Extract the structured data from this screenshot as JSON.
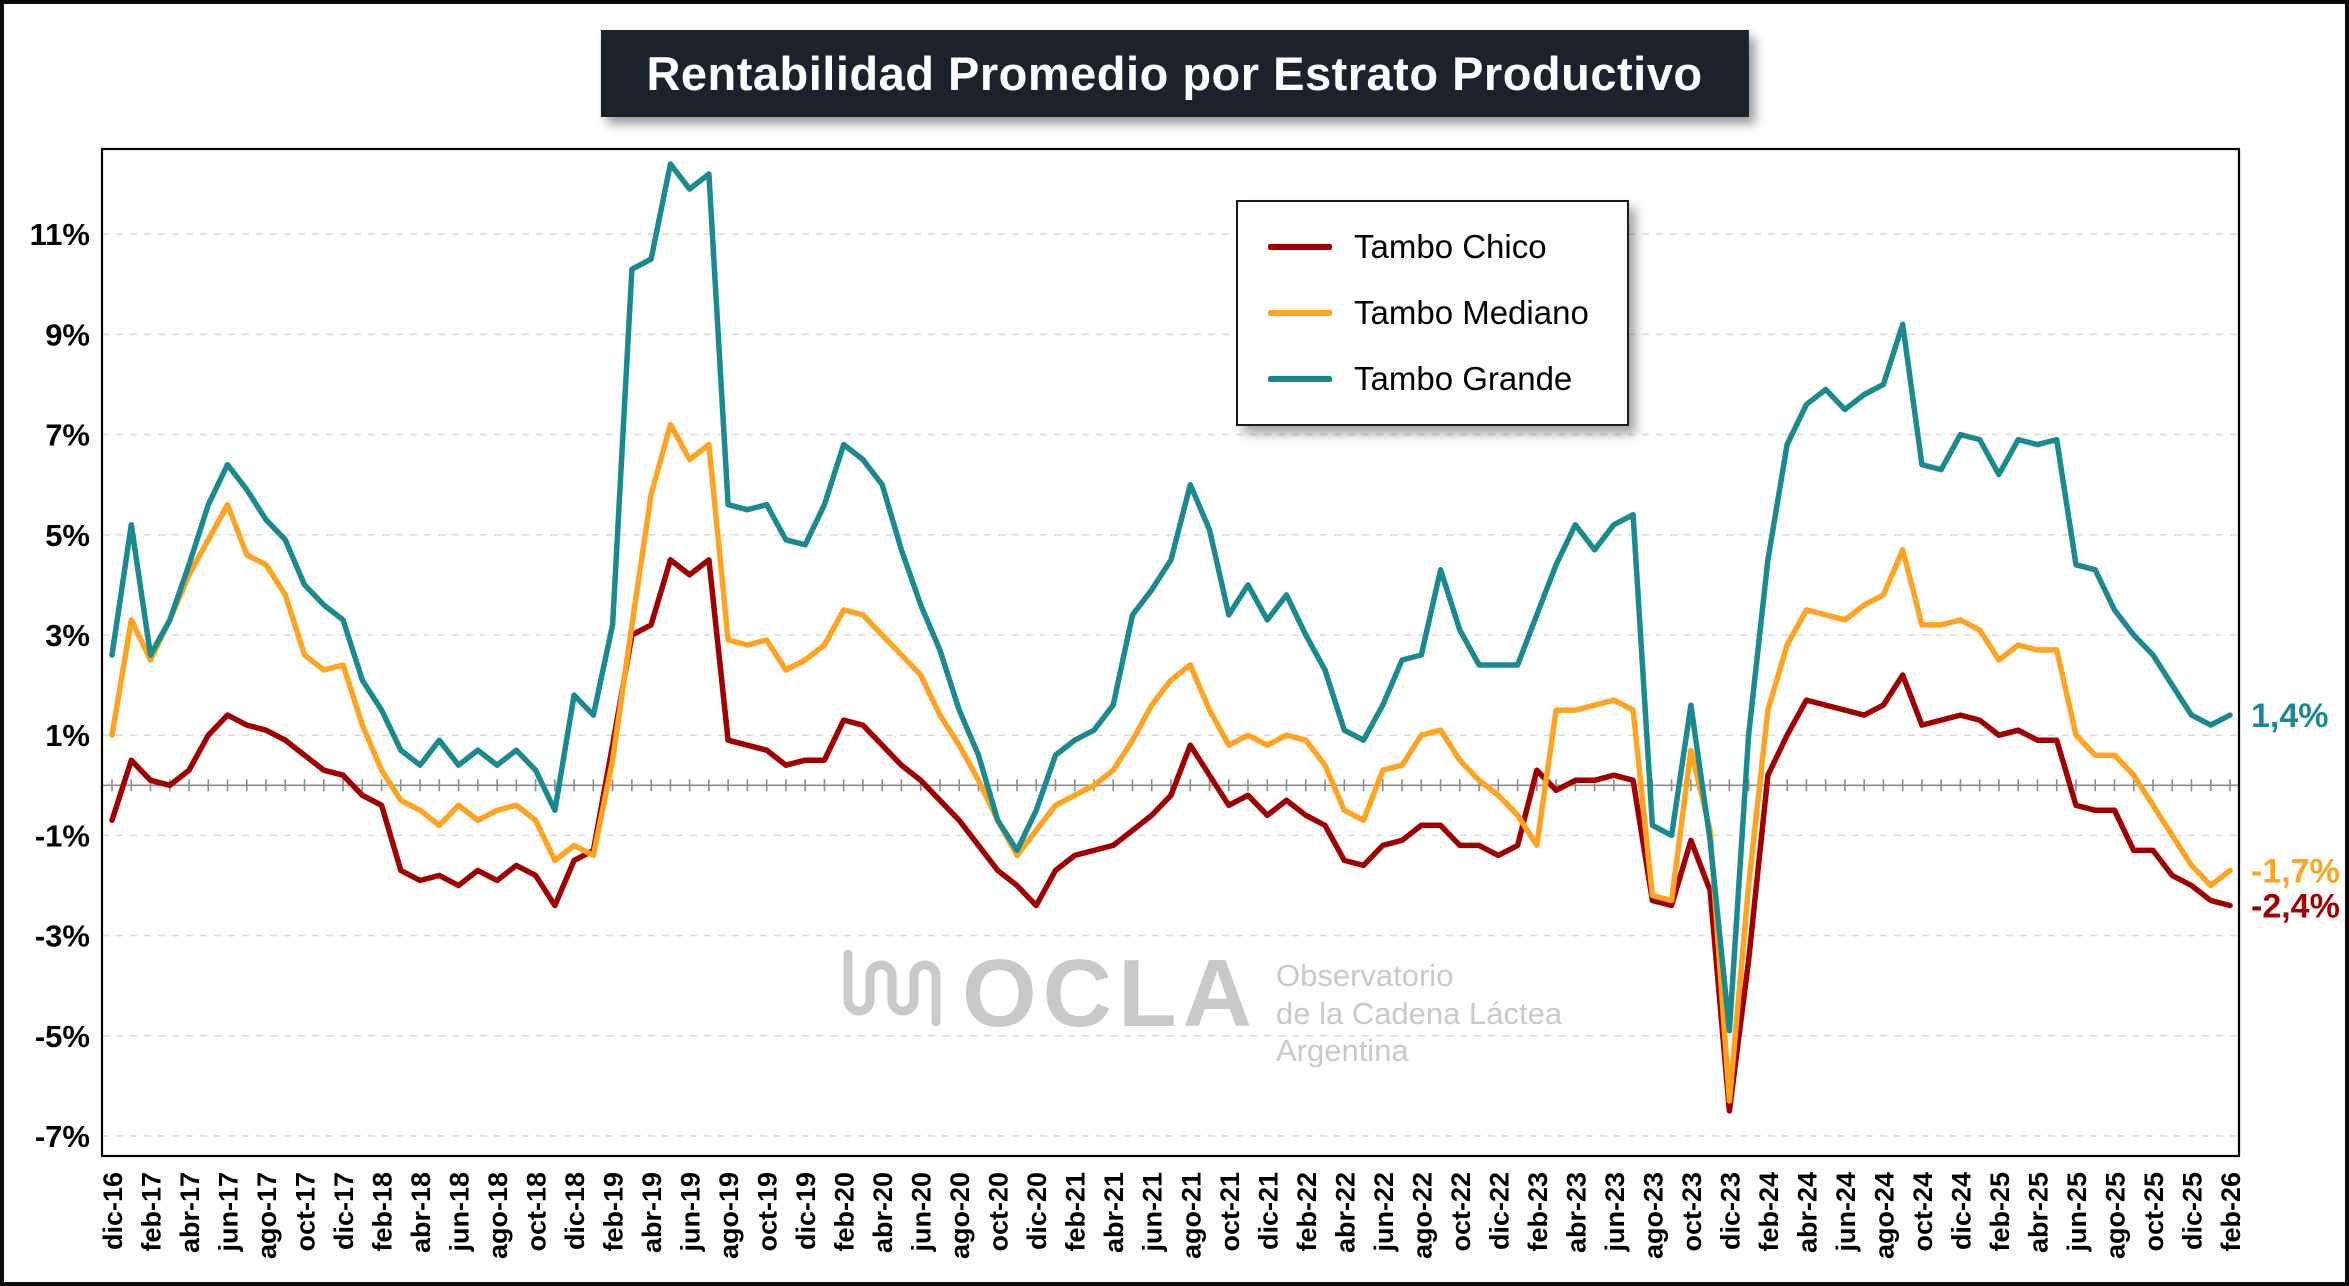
{
  "title": "Rentabilidad Promedio por Estrato Productivo",
  "colors": {
    "title_bg": "#1B222C",
    "grid": "#DCDCDC",
    "zero_axis": "#8C8C8C",
    "plot_border": "#000000",
    "watermark": "#C9C9C9"
  },
  "legend": {
    "items": [
      {
        "label": "Tambo Chico",
        "color": "#A00000"
      },
      {
        "label": "Tambo Mediano",
        "color": "#FFA320"
      },
      {
        "label": "Tambo Grande",
        "color": "#1B8A8F"
      }
    ]
  },
  "watermark": {
    "name": "OCLA",
    "lines": [
      "Observatorio",
      "de la Cadena Láctea",
      "Argentina"
    ]
  },
  "chart_data": {
    "type": "line",
    "title": "Rentabilidad Promedio por Estrato Productivo",
    "x_count": 111,
    "x_label_every": 2,
    "x_labels": [
      "dic-16",
      "feb-17",
      "abr-17",
      "jun-17",
      "ago-17",
      "oct-17",
      "dic-17",
      "feb-18",
      "abr-18",
      "jun-18",
      "ago-18",
      "oct-18",
      "dic-18",
      "feb-19",
      "abr-19",
      "jun-19",
      "ago-19",
      "oct-19",
      "dic-19",
      "feb-20",
      "abr-20",
      "jun-20",
      "ago-20",
      "oct-20",
      "dic-20",
      "feb-21",
      "abr-21",
      "jun-21",
      "ago-21",
      "oct-21",
      "dic-21",
      "feb-22",
      "abr-22",
      "jun-22",
      "ago-22",
      "oct-22",
      "dic-22",
      "feb-23",
      "abr-23",
      "jun-23",
      "ago-23",
      "oct-23",
      "dic-23",
      "feb-24",
      "abr-24",
      "jun-24",
      "ago-24",
      "oct-24",
      "dic-24",
      "feb-25",
      "abr-25",
      "jun-25",
      "ago-25",
      "oct-25",
      "dic-25",
      "feb-26"
    ],
    "y_ticks": [
      -7,
      -5,
      -3,
      -1,
      1,
      3,
      5,
      7,
      9,
      11
    ],
    "y_tick_labels": [
      "-7%",
      "-5%",
      "-3%",
      "-1%",
      "1%",
      "3%",
      "5%",
      "7%",
      "9%",
      "11%"
    ],
    "ylim": [
      -7.4,
      12.7
    ],
    "grid": true,
    "legend_position": "upper-center",
    "series": [
      {
        "name": "Tambo Chico",
        "color": "#A00000",
        "values": [
          -0.7,
          0.5,
          0.1,
          0.0,
          0.3,
          1.0,
          1.4,
          1.2,
          1.1,
          0.9,
          0.6,
          0.3,
          0.2,
          -0.2,
          -0.4,
          -1.7,
          -1.9,
          -1.8,
          -2.0,
          -1.7,
          -1.9,
          -1.6,
          -1.8,
          -2.4,
          -1.5,
          -1.3,
          0.8,
          3.0,
          3.2,
          4.5,
          4.2,
          4.5,
          0.9,
          0.8,
          0.7,
          0.4,
          0.5,
          0.5,
          1.3,
          1.2,
          0.8,
          0.4,
          0.1,
          -0.3,
          -0.7,
          -1.2,
          -1.7,
          -2.0,
          -2.4,
          -1.7,
          -1.4,
          -1.3,
          -1.2,
          -0.9,
          -0.6,
          -0.2,
          0.8,
          0.2,
          -0.4,
          -0.2,
          -0.6,
          -0.3,
          -0.6,
          -0.8,
          -1.5,
          -1.6,
          -1.2,
          -1.1,
          -0.8,
          -0.8,
          -1.2,
          -1.2,
          -1.4,
          -1.2,
          0.3,
          -0.1,
          0.1,
          0.1,
          0.2,
          0.1,
          -2.3,
          -2.4,
          -1.1,
          -2.1,
          -6.5,
          -3.5,
          0.2,
          1.0,
          1.7,
          1.6,
          1.5,
          1.4,
          1.6,
          2.2,
          1.2,
          1.3,
          1.4,
          1.3,
          1.0,
          1.1,
          0.9,
          0.9,
          -0.4,
          -0.5,
          -0.5,
          -1.3,
          -1.3,
          -1.8,
          -2.0,
          -2.3,
          -2.4
        ]
      },
      {
        "name": "Tambo Mediano",
        "color": "#FFA320",
        "values": [
          1.0,
          3.3,
          2.5,
          3.3,
          4.2,
          4.9,
          5.6,
          4.6,
          4.4,
          3.8,
          2.6,
          2.3,
          2.4,
          1.2,
          0.3,
          -0.3,
          -0.5,
          -0.8,
          -0.4,
          -0.7,
          -0.5,
          -0.4,
          -0.7,
          -1.5,
          -1.2,
          -1.4,
          0.5,
          3.2,
          5.8,
          7.2,
          6.5,
          6.8,
          2.9,
          2.8,
          2.9,
          2.3,
          2.5,
          2.8,
          3.5,
          3.4,
          3.0,
          2.6,
          2.2,
          1.4,
          0.8,
          0.1,
          -0.7,
          -1.4,
          -0.9,
          -0.4,
          -0.2,
          0.0,
          0.3,
          0.9,
          1.6,
          2.1,
          2.4,
          1.5,
          0.8,
          1.0,
          0.8,
          1.0,
          0.9,
          0.4,
          -0.5,
          -0.7,
          0.3,
          0.4,
          1.0,
          1.1,
          0.5,
          0.1,
          -0.2,
          -0.6,
          -1.2,
          1.5,
          1.5,
          1.6,
          1.7,
          1.5,
          -2.2,
          -2.3,
          0.7,
          -0.9,
          -6.3,
          -2.0,
          1.5,
          2.8,
          3.5,
          3.4,
          3.3,
          3.6,
          3.8,
          4.7,
          3.2,
          3.2,
          3.3,
          3.1,
          2.5,
          2.8,
          2.7,
          2.7,
          1.0,
          0.6,
          0.6,
          0.2,
          -0.4,
          -1.0,
          -1.6,
          -2.0,
          -1.7
        ]
      },
      {
        "name": "Tambo Grande",
        "color": "#1B8A8F",
        "values": [
          2.6,
          5.2,
          2.6,
          3.3,
          4.4,
          5.6,
          6.4,
          5.9,
          5.3,
          4.9,
          4.0,
          3.6,
          3.3,
          2.1,
          1.5,
          0.7,
          0.4,
          0.9,
          0.4,
          0.7,
          0.4,
          0.7,
          0.3,
          -0.5,
          1.8,
          1.4,
          3.2,
          10.3,
          10.5,
          12.4,
          11.9,
          12.2,
          5.6,
          5.5,
          5.6,
          4.9,
          4.8,
          5.6,
          6.8,
          6.5,
          6.0,
          4.7,
          3.6,
          2.7,
          1.5,
          0.6,
          -0.7,
          -1.3,
          -0.5,
          0.6,
          0.9,
          1.1,
          1.6,
          3.4,
          3.9,
          4.5,
          6.0,
          5.1,
          3.4,
          4.0,
          3.3,
          3.8,
          3.0,
          2.3,
          1.1,
          0.9,
          1.6,
          2.5,
          2.6,
          4.3,
          3.1,
          2.4,
          2.4,
          2.4,
          3.4,
          4.4,
          5.2,
          4.7,
          5.2,
          5.4,
          -0.8,
          -1.0,
          1.6,
          -1.1,
          -4.9,
          1.0,
          4.5,
          6.8,
          7.6,
          7.9,
          7.5,
          7.8,
          8.0,
          9.2,
          6.4,
          6.3,
          7.0,
          6.9,
          6.2,
          6.9,
          6.8,
          6.9,
          4.4,
          4.3,
          3.5,
          3.0,
          2.6,
          2.0,
          1.4,
          1.2,
          1.4
        ]
      }
    ],
    "end_labels": [
      {
        "text": "1,4%",
        "value": 1.4,
        "color": "#1B8A8F",
        "series": "Tambo Grande"
      },
      {
        "text": "-1,7%",
        "value": -1.7,
        "color": "#FFA320",
        "series": "Tambo Mediano"
      },
      {
        "text": "-2,4%",
        "value": -2.4,
        "color": "#A00000",
        "series": "Tambo Chico"
      }
    ]
  }
}
